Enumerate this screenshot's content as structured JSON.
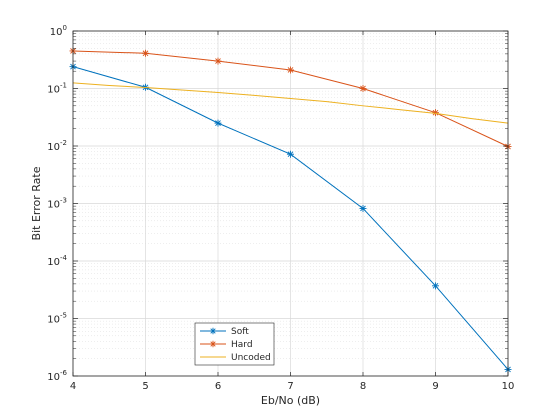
{
  "chart_data": {
    "type": "line",
    "title": "",
    "xlabel": "Eb/No (dB)",
    "ylabel": "Bit Error Rate",
    "xlim": [
      4,
      10
    ],
    "ylim": [
      1e-06,
      1
    ],
    "yscale": "log",
    "grid": true,
    "minor_grid": true,
    "legend_position": "bottom-left",
    "x_ticks": [
      4,
      5,
      6,
      7,
      8,
      9,
      10
    ],
    "y_ticks": [
      {
        "base": "10",
        "exp": "0"
      },
      {
        "base": "10",
        "exp": "-1"
      },
      {
        "base": "10",
        "exp": "-2"
      },
      {
        "base": "10",
        "exp": "-3"
      },
      {
        "base": "10",
        "exp": "-4"
      },
      {
        "base": "10",
        "exp": "-5"
      },
      {
        "base": "10",
        "exp": "-6"
      }
    ],
    "series": [
      {
        "name": "Soft",
        "color": "#0072bd",
        "marker": "asterisk",
        "x": [
          4,
          5,
          6,
          7,
          8,
          9,
          10
        ],
        "y": [
          0.24,
          0.105,
          0.025,
          0.0072,
          0.00082,
          3.7e-05,
          1.3e-06
        ]
      },
      {
        "name": "Hard",
        "color": "#d95319",
        "marker": "asterisk",
        "x": [
          4,
          5,
          6,
          7,
          8,
          9,
          10
        ],
        "y": [
          0.45,
          0.41,
          0.3,
          0.21,
          0.1,
          0.038,
          0.0098
        ]
      },
      {
        "name": "Uncoded",
        "color": "#edb120",
        "marker": "none",
        "x": [
          4,
          4.5,
          5,
          5.5,
          6,
          6.5,
          7,
          7.5,
          8,
          8.5,
          9,
          9.5,
          10
        ],
        "y": [
          0.125,
          0.113,
          0.104,
          0.094,
          0.085,
          0.076,
          0.067,
          0.059,
          0.05,
          0.043,
          0.037,
          0.03,
          0.025
        ]
      }
    ]
  }
}
